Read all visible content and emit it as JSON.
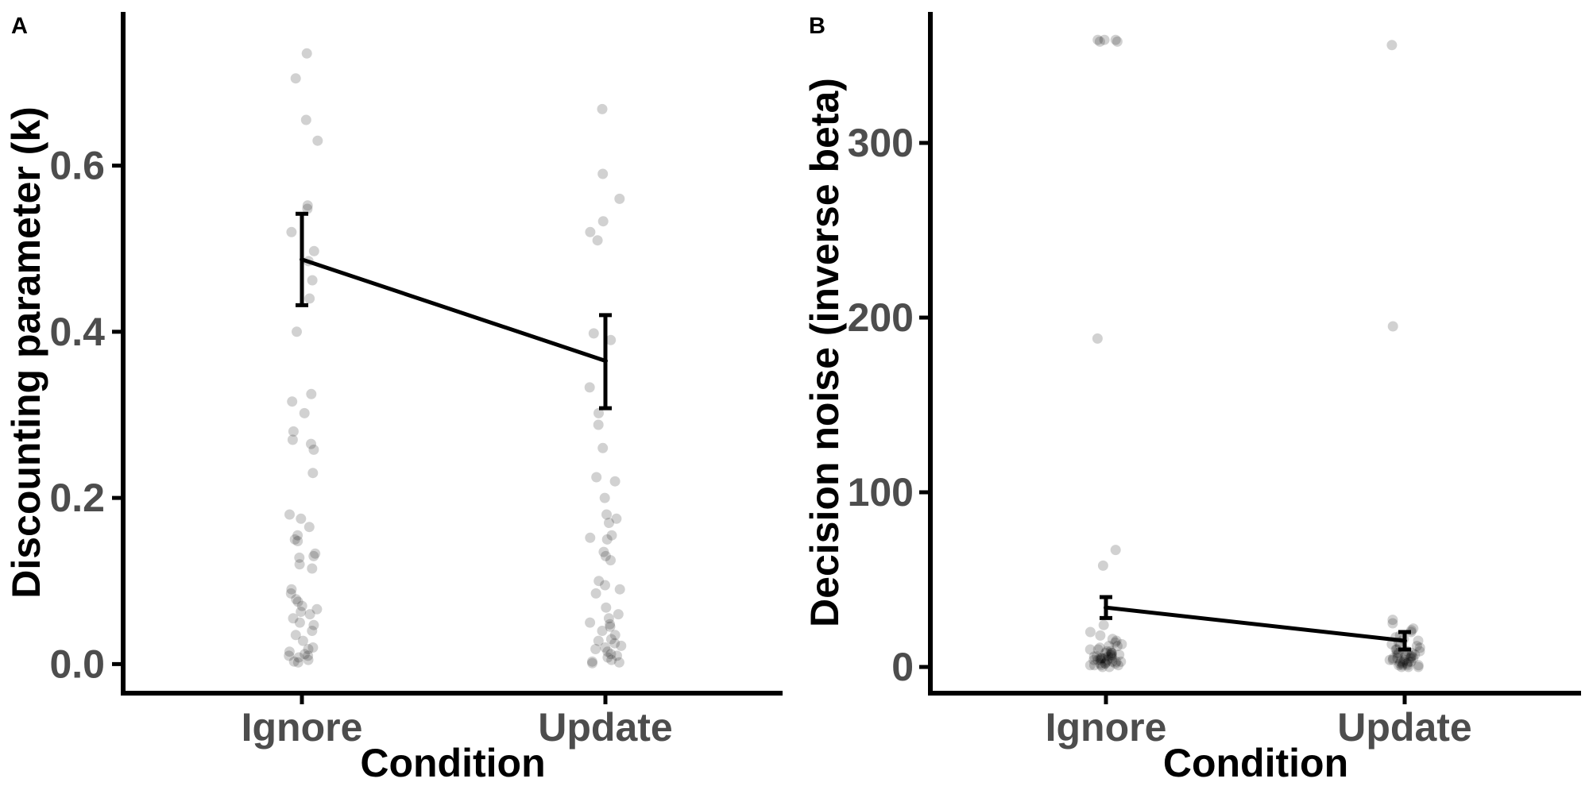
{
  "chart_data": [
    {
      "panel_label": "A",
      "type": "scatter",
      "overlay": "mean line with error bars",
      "categories": [
        "Ignore",
        "Update"
      ],
      "xlabel": "Condition",
      "ylabel": "Discounting parameter (k)",
      "ylim": [
        -0.035,
        0.785
      ],
      "yticks": [
        0.0,
        0.2,
        0.4,
        0.6
      ],
      "ytick_labels": [
        "0.0",
        "0.2",
        "0.4",
        "0.6"
      ],
      "mean": [
        0.487,
        0.365
      ],
      "error_low": [
        0.432,
        0.308
      ],
      "error_high": [
        0.542,
        0.42
      ],
      "points": [
        {
          "values": [
            0.735,
            0.705,
            0.655,
            0.63,
            0.552,
            0.548,
            0.52,
            0.497,
            0.485,
            0.462,
            0.44,
            0.4,
            0.325,
            0.316,
            0.302,
            0.28,
            0.27,
            0.265,
            0.258,
            0.23,
            0.18,
            0.175,
            0.165,
            0.155,
            0.15,
            0.148,
            0.133,
            0.13,
            0.128,
            0.12,
            0.115,
            0.09,
            0.085,
            0.078,
            0.075,
            0.07,
            0.066,
            0.063,
            0.06,
            0.055,
            0.05,
            0.047,
            0.04,
            0.035,
            0.028,
            0.02,
            0.018,
            0.015,
            0.012,
            0.01,
            0.01,
            0.008,
            0.005,
            0.003,
            0.002
          ]
        },
        {
          "values": [
            0.668,
            0.59,
            0.56,
            0.533,
            0.52,
            0.51,
            0.398,
            0.39,
            0.333,
            0.302,
            0.288,
            0.26,
            0.225,
            0.22,
            0.2,
            0.18,
            0.175,
            0.17,
            0.155,
            0.152,
            0.15,
            0.135,
            0.13,
            0.125,
            0.1,
            0.095,
            0.09,
            0.085,
            0.068,
            0.06,
            0.055,
            0.05,
            0.048,
            0.045,
            0.04,
            0.035,
            0.03,
            0.028,
            0.025,
            0.022,
            0.02,
            0.018,
            0.015,
            0.012,
            0.01,
            0.008,
            0.005,
            0.003,
            0.002,
            0.001
          ]
        }
      ]
    },
    {
      "panel_label": "B",
      "type": "scatter",
      "overlay": "mean line with error bars",
      "categories": [
        "Ignore",
        "Update"
      ],
      "xlabel": "Condition",
      "ylabel": "Decision noise (inverse beta)",
      "ylim": [
        -15,
        375
      ],
      "yticks": [
        0,
        100,
        200,
        300
      ],
      "ytick_labels": [
        "0",
        "100",
        "200",
        "300"
      ],
      "mean": [
        34,
        15
      ],
      "error_low": [
        28,
        10
      ],
      "error_high": [
        40,
        20
      ],
      "points": [
        {
          "values": [
            359,
            359,
            359,
            358,
            358,
            188,
            67,
            58,
            24,
            20,
            18,
            16,
            15,
            14,
            13,
            12,
            12,
            11,
            10,
            10,
            9,
            9,
            8,
            8,
            8,
            7,
            7,
            7,
            6,
            6,
            6,
            6,
            5,
            5,
            5,
            5,
            5,
            4,
            4,
            4,
            4,
            3,
            3,
            3,
            3,
            2,
            2,
            2,
            2,
            1,
            1,
            1,
            1,
            0,
            0
          ]
        },
        {
          "values": [
            356,
            195,
            27,
            25,
            22,
            21,
            20,
            18,
            17,
            16,
            15,
            14,
            13,
            12,
            12,
            11,
            10,
            10,
            9,
            9,
            8,
            8,
            8,
            7,
            7,
            7,
            6,
            6,
            6,
            5,
            5,
            5,
            5,
            4,
            4,
            4,
            3,
            3,
            3,
            3,
            2,
            2,
            2,
            1,
            1,
            1,
            1,
            0,
            0,
            0
          ]
        }
      ]
    }
  ]
}
